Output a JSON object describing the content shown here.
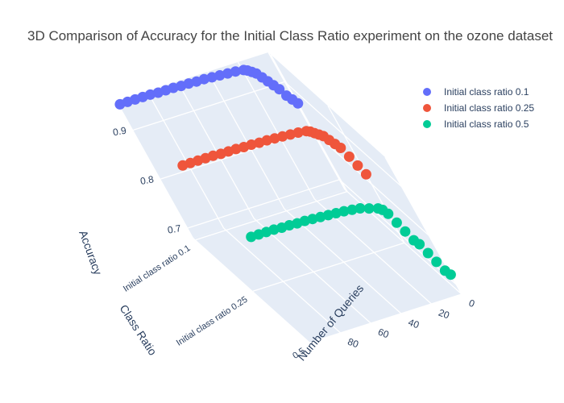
{
  "chart_data": {
    "type": "scatter3d",
    "title": "3D Comparison of Accuracy for the Initial Class Ratio experiment on the ozone dataset",
    "axes": {
      "x": {
        "title": "Class Ratio",
        "categories": [
          "Initial class ratio 0.1",
          "Initial class ratio 0.25",
          "Initial class ratio 0.5"
        ],
        "tick_text": [
          "Initial class ratio 0.1",
          "Initial class ratio 0.25",
          "0.5"
        ]
      },
      "y": {
        "title": "Number of Queries",
        "range": [
          0,
          100
        ],
        "ticks": [
          0,
          20,
          40,
          60,
          80
        ]
      },
      "z": {
        "title": "Accuracy",
        "range": [
          0.68,
          0.96
        ],
        "ticks": [
          0.7,
          0.8,
          0.9
        ]
      }
    },
    "legend_position": "top-right",
    "series": [
      {
        "name": "Initial class ratio 0.1",
        "color": "#636efa",
        "class_index": 0,
        "queries": [
          0,
          2,
          4,
          6,
          8,
          10,
          12,
          14,
          16,
          18,
          20,
          25,
          30,
          35,
          40,
          45,
          50,
          55,
          60,
          65,
          70,
          75,
          80,
          85,
          90,
          95,
          100
        ],
        "accuracy": [
          0.86,
          0.87,
          0.88,
          0.895,
          0.905,
          0.915,
          0.925,
          0.935,
          0.94,
          0.945,
          0.948,
          0.95,
          0.951,
          0.952,
          0.953,
          0.954,
          0.954,
          0.955,
          0.955,
          0.956,
          0.956,
          0.956,
          0.957,
          0.957,
          0.957,
          0.957,
          0.957
        ]
      },
      {
        "name": "Initial class ratio 0.25",
        "color": "#ef553b",
        "class_index": 1,
        "queries": [
          0,
          2,
          4,
          6,
          8,
          10,
          12,
          14,
          16,
          18,
          20,
          25,
          30,
          35,
          40,
          45,
          50,
          55,
          60,
          65,
          70,
          75,
          80,
          85,
          90,
          95,
          100
        ],
        "accuracy": [
          0.82,
          0.84,
          0.86,
          0.88,
          0.89,
          0.9,
          0.91,
          0.915,
          0.92,
          0.925,
          0.928,
          0.93,
          0.931,
          0.932,
          0.933,
          0.934,
          0.934,
          0.935,
          0.935,
          0.936,
          0.936,
          0.936,
          0.937,
          0.937,
          0.937,
          0.937,
          0.937
        ]
      },
      {
        "name": "Initial class ratio 0.5",
        "color": "#00cc96",
        "class_index": 2,
        "queries": [
          0,
          2,
          4,
          6,
          8,
          10,
          12,
          14,
          16,
          18,
          20,
          25,
          30,
          35,
          40,
          45,
          50,
          55,
          60,
          65,
          70,
          75,
          80,
          85,
          90,
          95,
          100
        ],
        "accuracy": [
          0.72,
          0.73,
          0.75,
          0.77,
          0.79,
          0.8,
          0.82,
          0.84,
          0.86,
          0.87,
          0.875,
          0.88,
          0.885,
          0.887,
          0.889,
          0.89,
          0.891,
          0.892,
          0.893,
          0.894,
          0.894,
          0.895,
          0.895,
          0.896,
          0.896,
          0.896,
          0.896
        ]
      }
    ]
  }
}
